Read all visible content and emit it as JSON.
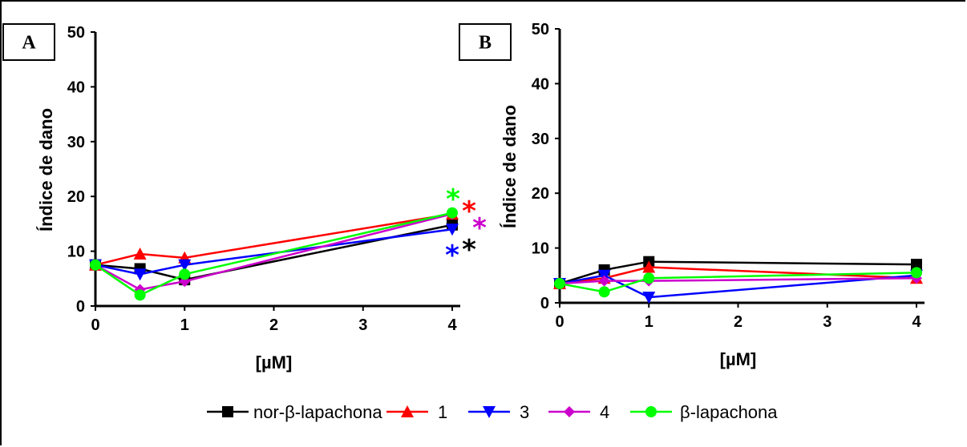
{
  "chart_data": [
    {
      "type": "line",
      "panel": "A",
      "xlabel": "[µM]",
      "ylabel": "Índice de dano",
      "xlim": [
        0,
        4
      ],
      "ylim": [
        0,
        50
      ],
      "xticks": [
        "0",
        "1",
        "2",
        "3",
        "4"
      ],
      "yticks": [
        "0",
        "10",
        "20",
        "30",
        "40",
        "50"
      ],
      "x": [
        0,
        0.5,
        1,
        4
      ],
      "series": [
        {
          "name": "nor-β-lapachona",
          "values": [
            7.5,
            6.8,
            4.8,
            14.8
          ],
          "color": "#000000",
          "marker": "square"
        },
        {
          "name": "1",
          "values": [
            7.5,
            9.5,
            8.8,
            16.8
          ],
          "color": "#ff0000",
          "marker": "triangle-up"
        },
        {
          "name": "3",
          "values": [
            7.5,
            5.8,
            7.5,
            14.0
          ],
          "color": "#0000ff",
          "marker": "triangle-down"
        },
        {
          "name": "4",
          "values": [
            7.5,
            3.0,
            4.5,
            16.8
          ],
          "color": "#cc00cc",
          "marker": "diamond"
        },
        {
          "name": "β-lapachona",
          "values": [
            7.5,
            2.0,
            5.8,
            17.0
          ],
          "color": "#00ff00",
          "marker": "circle"
        }
      ],
      "annotations": [
        {
          "text": "*",
          "color": "#00ff00",
          "series": "β-lapachona"
        },
        {
          "text": "*",
          "color": "#ff0000",
          "series": "1"
        },
        {
          "text": "*",
          "color": "#cc00cc",
          "series": "4"
        },
        {
          "text": "*",
          "color": "#0000ff",
          "series": "3"
        },
        {
          "text": "*",
          "color": "#000000",
          "series": "nor-β-lapachona"
        }
      ]
    },
    {
      "type": "line",
      "panel": "B",
      "xlabel": "[µM]",
      "ylabel": "Índice de dano",
      "xlim": [
        0,
        4
      ],
      "ylim": [
        0,
        50
      ],
      "xticks": [
        "0",
        "1",
        "2",
        "3",
        "4"
      ],
      "yticks": [
        "0",
        "10",
        "20",
        "30",
        "40",
        "50"
      ],
      "x": [
        0,
        0.5,
        1,
        4
      ],
      "series": [
        {
          "name": "nor-β-lapachona",
          "values": [
            3.5,
            6.0,
            7.5,
            7.0
          ],
          "color": "#000000",
          "marker": "square"
        },
        {
          "name": "1",
          "values": [
            3.5,
            4.5,
            6.5,
            4.5
          ],
          "color": "#ff0000",
          "marker": "triangle-up"
        },
        {
          "name": "3",
          "values": [
            3.5,
            5.0,
            1.0,
            5.0
          ],
          "color": "#0000ff",
          "marker": "triangle-down"
        },
        {
          "name": "4",
          "values": [
            3.5,
            4.0,
            4.0,
            4.5
          ],
          "color": "#cc00cc",
          "marker": "diamond"
        },
        {
          "name": "β-lapachona",
          "values": [
            3.5,
            2.0,
            4.5,
            5.5
          ],
          "color": "#00ff00",
          "marker": "circle"
        }
      ]
    }
  ],
  "legend": {
    "placement": "bottom-center",
    "entries": [
      {
        "label": "nor-β-lapachona",
        "color": "#000000",
        "marker": "square"
      },
      {
        "label": "1",
        "color": "#ff0000",
        "marker": "triangle-up"
      },
      {
        "label": "3",
        "color": "#0000ff",
        "marker": "triangle-down"
      },
      {
        "label": "4",
        "color": "#cc00cc",
        "marker": "diamond"
      },
      {
        "label": "β-lapachona",
        "color": "#00ff00",
        "marker": "circle"
      }
    ]
  }
}
